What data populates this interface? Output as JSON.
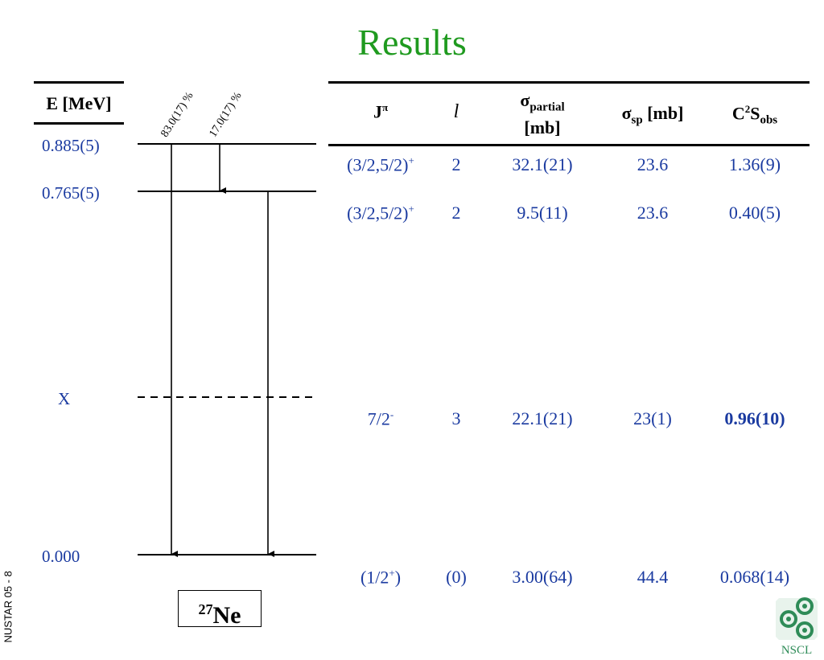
{
  "title": "Results",
  "side_label": "NUSTAR 05 - 8",
  "energy_header": "E [MeV]",
  "nucleus": {
    "mass": "27",
    "symbol": "Ne"
  },
  "levels": [
    {
      "energy": "0.885(5)"
    },
    {
      "energy": "0.765(5)"
    },
    {
      "energy": "X"
    },
    {
      "energy": "0.000"
    }
  ],
  "branches": [
    "83.0(17) %",
    "17.0(17) %"
  ],
  "table": {
    "headers": {
      "jpi_base": "J",
      "jpi_sup": "π",
      "l": "l",
      "partial_sigma": "σ",
      "partial_sub": "partial",
      "partial_unit": "[mb]",
      "sp_sigma": "σ",
      "sp_sub": "sp",
      "sp_unit": " [mb]",
      "c2s_pre": "C",
      "c2s_sup": "2",
      "c2s_s": "S",
      "c2s_sub": "obs"
    },
    "rows": [
      {
        "jpi_base": "(3/2,5/2)",
        "jpi_sup": "+",
        "jpi_close": "",
        "l": "2",
        "partial": "32.1(21)",
        "sp": "23.6",
        "c2s": "1.36(9)"
      },
      {
        "jpi_base": "(3/2,5/2)",
        "jpi_sup": "+",
        "jpi_close": "",
        "l": "2",
        "partial": "9.5(11)",
        "sp": "23.6",
        "c2s": "0.40(5)"
      },
      {
        "jpi_base": "7/2",
        "jpi_sup": "-",
        "jpi_close": "",
        "l": "3",
        "partial": "22.1(21)",
        "sp": "23(1)",
        "c2s": "0.96(10)"
      },
      {
        "jpi_base": "(1/2",
        "jpi_sup": "+",
        "jpi_close": ")",
        "l": "(0)",
        "partial": "3.00(64)",
        "sp": "44.4",
        "c2s": "0.068(14)"
      }
    ]
  },
  "logo_text": "NSCL",
  "colors": {
    "title": "#1f9a1f",
    "values": "#1a3aa0",
    "logo": "#2e8b57"
  }
}
